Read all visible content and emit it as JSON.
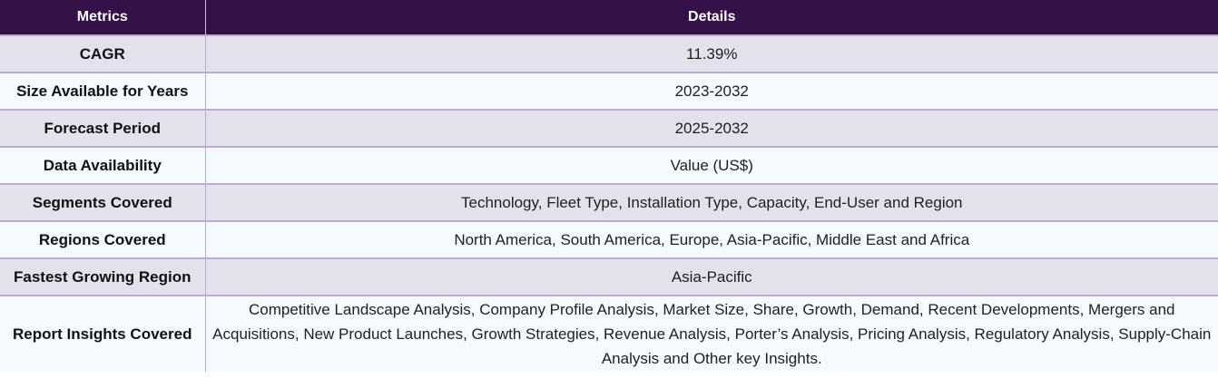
{
  "table": {
    "headers": [
      "Metrics",
      "Details"
    ],
    "rows": [
      {
        "metric": "CAGR",
        "details": "11.39%"
      },
      {
        "metric": "Size Available for Years",
        "details": "2023-2032"
      },
      {
        "metric": "Forecast Period",
        "details": "2025-2032"
      },
      {
        "metric": "Data Availability",
        "details": "Value (US$)"
      },
      {
        "metric": "Segments Covered",
        "details": "Technology, Fleet Type, Installation Type, Capacity, End-User and Region"
      },
      {
        "metric": "Regions Covered",
        "details": "North America, South America, Europe, Asia-Pacific, Middle East and Africa"
      },
      {
        "metric": "Fastest Growing Region",
        "details": "Asia-Pacific"
      },
      {
        "metric": "Report Insights Covered",
        "details": "Competitive Landscape Analysis, Company Profile Analysis, Market Size, Share, Growth, Demand, Recent Developments, Mergers and Acquisitions, New Product Launches, Growth Strategies, Revenue Analysis, Porter’s Analysis, Pricing Analysis, Regulatory Analysis, Supply-Chain Analysis and Other key Insights."
      }
    ]
  },
  "colors": {
    "header_bg": "#341148",
    "row_alt_bg": "#e4e0ec",
    "row_bg": "#f4fafd",
    "border": "#b7aed3"
  }
}
